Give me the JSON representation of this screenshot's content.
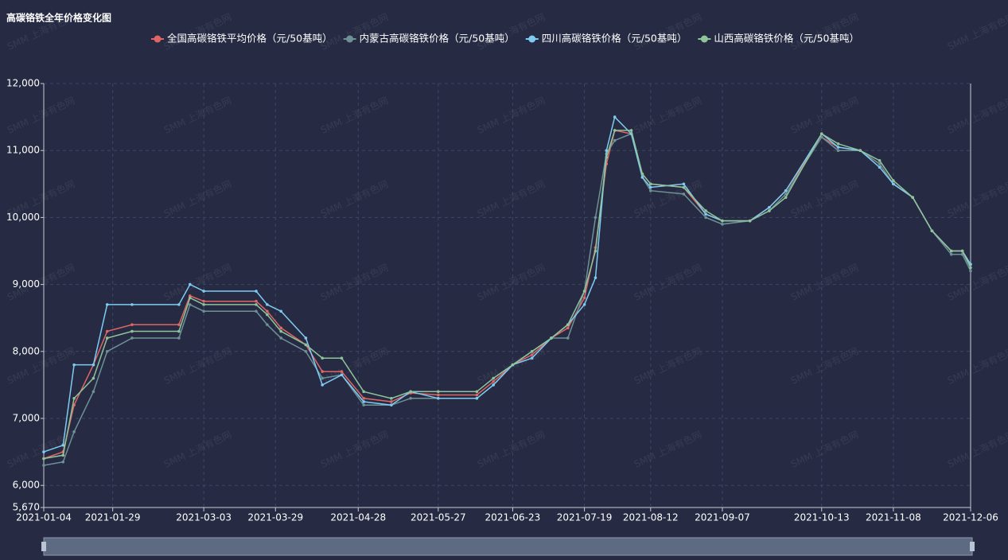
{
  "chart_data": {
    "type": "line",
    "title": "高碳铬铁全年价格变化图",
    "watermark": "SMM 上海有色网",
    "x": [
      "2021-01-04",
      "2021-01-11",
      "2021-01-15",
      "2021-01-22",
      "2021-01-27",
      "2021-02-05",
      "2021-02-22",
      "2021-02-26",
      "2021-03-03",
      "2021-03-22",
      "2021-03-26",
      "2021-03-31",
      "2021-04-09",
      "2021-04-15",
      "2021-04-22",
      "2021-04-30",
      "2021-05-10",
      "2021-05-17",
      "2021-05-27",
      "2021-06-10",
      "2021-06-16",
      "2021-06-23",
      "2021-06-30",
      "2021-07-07",
      "2021-07-13",
      "2021-07-19",
      "2021-07-23",
      "2021-07-27",
      "2021-07-30",
      "2021-08-05",
      "2021-08-09",
      "2021-08-12",
      "2021-08-24",
      "2021-09-01",
      "2021-09-07",
      "2021-09-17",
      "2021-09-24",
      "2021-09-30",
      "2021-10-13",
      "2021-10-19",
      "2021-10-27",
      "2021-11-03",
      "2021-11-08",
      "2021-11-15",
      "2021-11-22",
      "2021-11-29",
      "2021-12-03",
      "2021-12-06"
    ],
    "series": [
      {
        "name": "全国高碳铬铁平均价格（元/50基吨）",
        "color": "#e06666",
        "values": [
          6400,
          6500,
          7200,
          7800,
          8300,
          8400,
          8400,
          8830,
          8750,
          8750,
          8600,
          8350,
          8100,
          7700,
          7700,
          7300,
          7250,
          7380,
          7350,
          7350,
          7550,
          7800,
          7950,
          8200,
          8350,
          8800,
          9550,
          10800,
          11300,
          11250,
          10650,
          10500,
          10450,
          10050,
          9950,
          9950,
          10150,
          10400,
          11200,
          11050,
          11000,
          10800,
          10500,
          10300,
          9800,
          9500,
          9500,
          9300
        ]
      },
      {
        "name": "内蒙古高碳铬铁价格（元/50基吨）",
        "color": "#6e9196",
        "values": [
          6300,
          6350,
          6800,
          7400,
          8000,
          8200,
          8200,
          8700,
          8600,
          8600,
          8400,
          8200,
          8000,
          7600,
          7650,
          7200,
          7200,
          7300,
          7300,
          7300,
          7500,
          7800,
          8000,
          8200,
          8200,
          8900,
          10000,
          10950,
          11150,
          11250,
          10600,
          10400,
          10350,
          10000,
          9900,
          9950,
          10100,
          10350,
          11200,
          11000,
          11000,
          10800,
          10500,
          10300,
          9800,
          9450,
          9450,
          9200
        ]
      },
      {
        "name": "四川高碳铬铁价格（元/50基吨）",
        "color": "#7ecbf2",
        "values": [
          6500,
          6600,
          7800,
          7800,
          8700,
          8700,
          8700,
          9000,
          8900,
          8900,
          8700,
          8600,
          8200,
          7500,
          7650,
          7250,
          7200,
          7400,
          7300,
          7300,
          7500,
          7800,
          7900,
          8200,
          8400,
          8700,
          9100,
          11000,
          11500,
          11250,
          10600,
          10450,
          10500,
          10050,
          9950,
          9950,
          10150,
          10400,
          11250,
          11050,
          11000,
          10750,
          10500,
          10300,
          9800,
          9500,
          9500,
          9300
        ]
      },
      {
        "name": "山西高碳铬铁价格（元/50基吨）",
        "color": "#8fc49a",
        "values": [
          6400,
          6450,
          7300,
          7600,
          8200,
          8300,
          8300,
          8800,
          8700,
          8700,
          8550,
          8300,
          8100,
          7900,
          7900,
          7400,
          7300,
          7400,
          7400,
          7400,
          7600,
          7800,
          8000,
          8200,
          8400,
          8900,
          9500,
          10900,
          11300,
          11300,
          10650,
          10500,
          10450,
          10100,
          9950,
          9950,
          10100,
          10300,
          11250,
          11100,
          11000,
          10850,
          10550,
          10300,
          9800,
          9500,
          9500,
          9250
        ]
      }
    ],
    "xlim": [
      "2021-01-04",
      "2021-12-06"
    ],
    "xticks": [
      "2021-01-04",
      "2021-01-29",
      "2021-03-03",
      "2021-03-29",
      "2021-04-28",
      "2021-05-27",
      "2021-06-23",
      "2021-07-19",
      "2021-08-12",
      "2021-09-07",
      "2021-10-13",
      "2021-11-08",
      "2021-12-06"
    ],
    "ylim": [
      5670,
      12000
    ],
    "yticks": [
      {
        "value": 5670,
        "label": "5,670"
      },
      {
        "value": 6000,
        "label": "6,000"
      },
      {
        "value": 7000,
        "label": "7,000"
      },
      {
        "value": 8000,
        "label": "8,000"
      },
      {
        "value": 9000,
        "label": "9,000"
      },
      {
        "value": 10000,
        "label": "10,000"
      },
      {
        "value": 11000,
        "label": "11,000"
      },
      {
        "value": 12000,
        "label": "12,000"
      }
    ],
    "grid": true
  }
}
